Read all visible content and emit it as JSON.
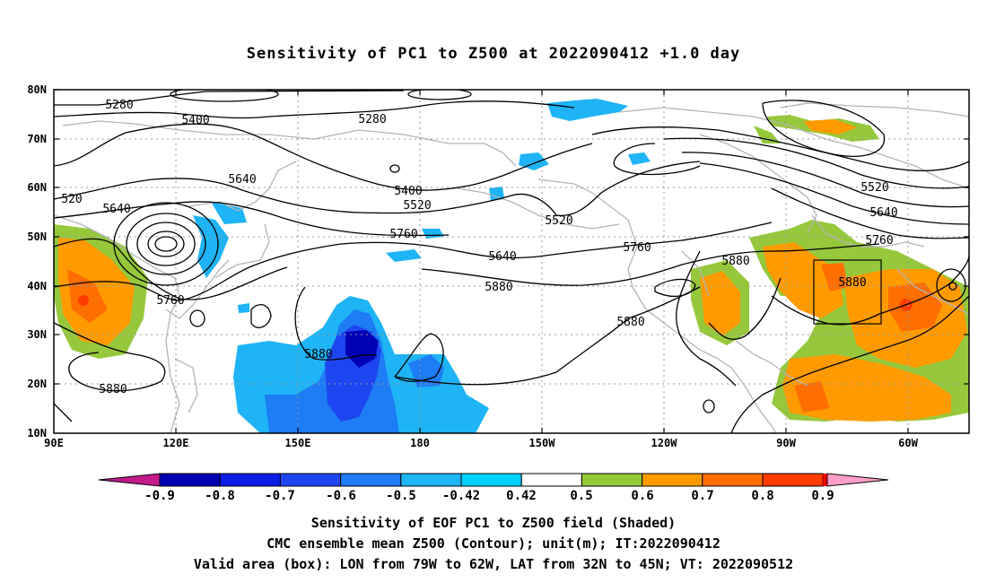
{
  "title": "Sensitivity of PC1 to Z500 at 2022090412 +1.0 day",
  "map": {
    "lat_labels": [
      "80N",
      "70N",
      "60N",
      "50N",
      "40N",
      "30N",
      "20N",
      "10N"
    ],
    "lon_labels": [
      "90E",
      "120E",
      "150E",
      "180",
      "150W",
      "120W",
      "90W",
      "60W"
    ],
    "contour_labels": [
      "5280",
      "5400",
      "5280",
      "5640",
      "5400",
      "5520",
      "520",
      "5640",
      "5520",
      "5760",
      "5520",
      "5640",
      "5760",
      "5640",
      "5880",
      "5760",
      "5880",
      "5760",
      "5880",
      "5880",
      "5880",
      "5880"
    ],
    "box": {
      "lon_from": "79W",
      "lon_to": "62W",
      "lat_from": "32N",
      "lat_to": "45N"
    }
  },
  "colorbar": {
    "tick_labels": [
      "-0.9",
      "-0.8",
      "-0.7",
      "-0.6",
      "-0.5",
      "-0.42",
      "0.42",
      "0.5",
      "0.6",
      "0.7",
      "0.8",
      "0.9"
    ],
    "colors": [
      "#c21a8c",
      "#0000b4",
      "#0a1ee6",
      "#1e46f0",
      "#1e7cf5",
      "#1eb4f5",
      "#00d2ff",
      "#ffffff",
      "#96c83c",
      "#ff9b00",
      "#ff6e00",
      "#ff3c00",
      "#ff0000",
      "#ff9ec8"
    ]
  },
  "footer": {
    "line1": "Sensitivity of EOF PC1 to Z500 field (Shaded)",
    "line2": "CMC ensemble mean Z500 (Contour); unit(m); IT:2022090412",
    "line3": "Valid area (box): LON from 79W to 62W, LAT from 32N to 45N; VT: 2022090512"
  }
}
